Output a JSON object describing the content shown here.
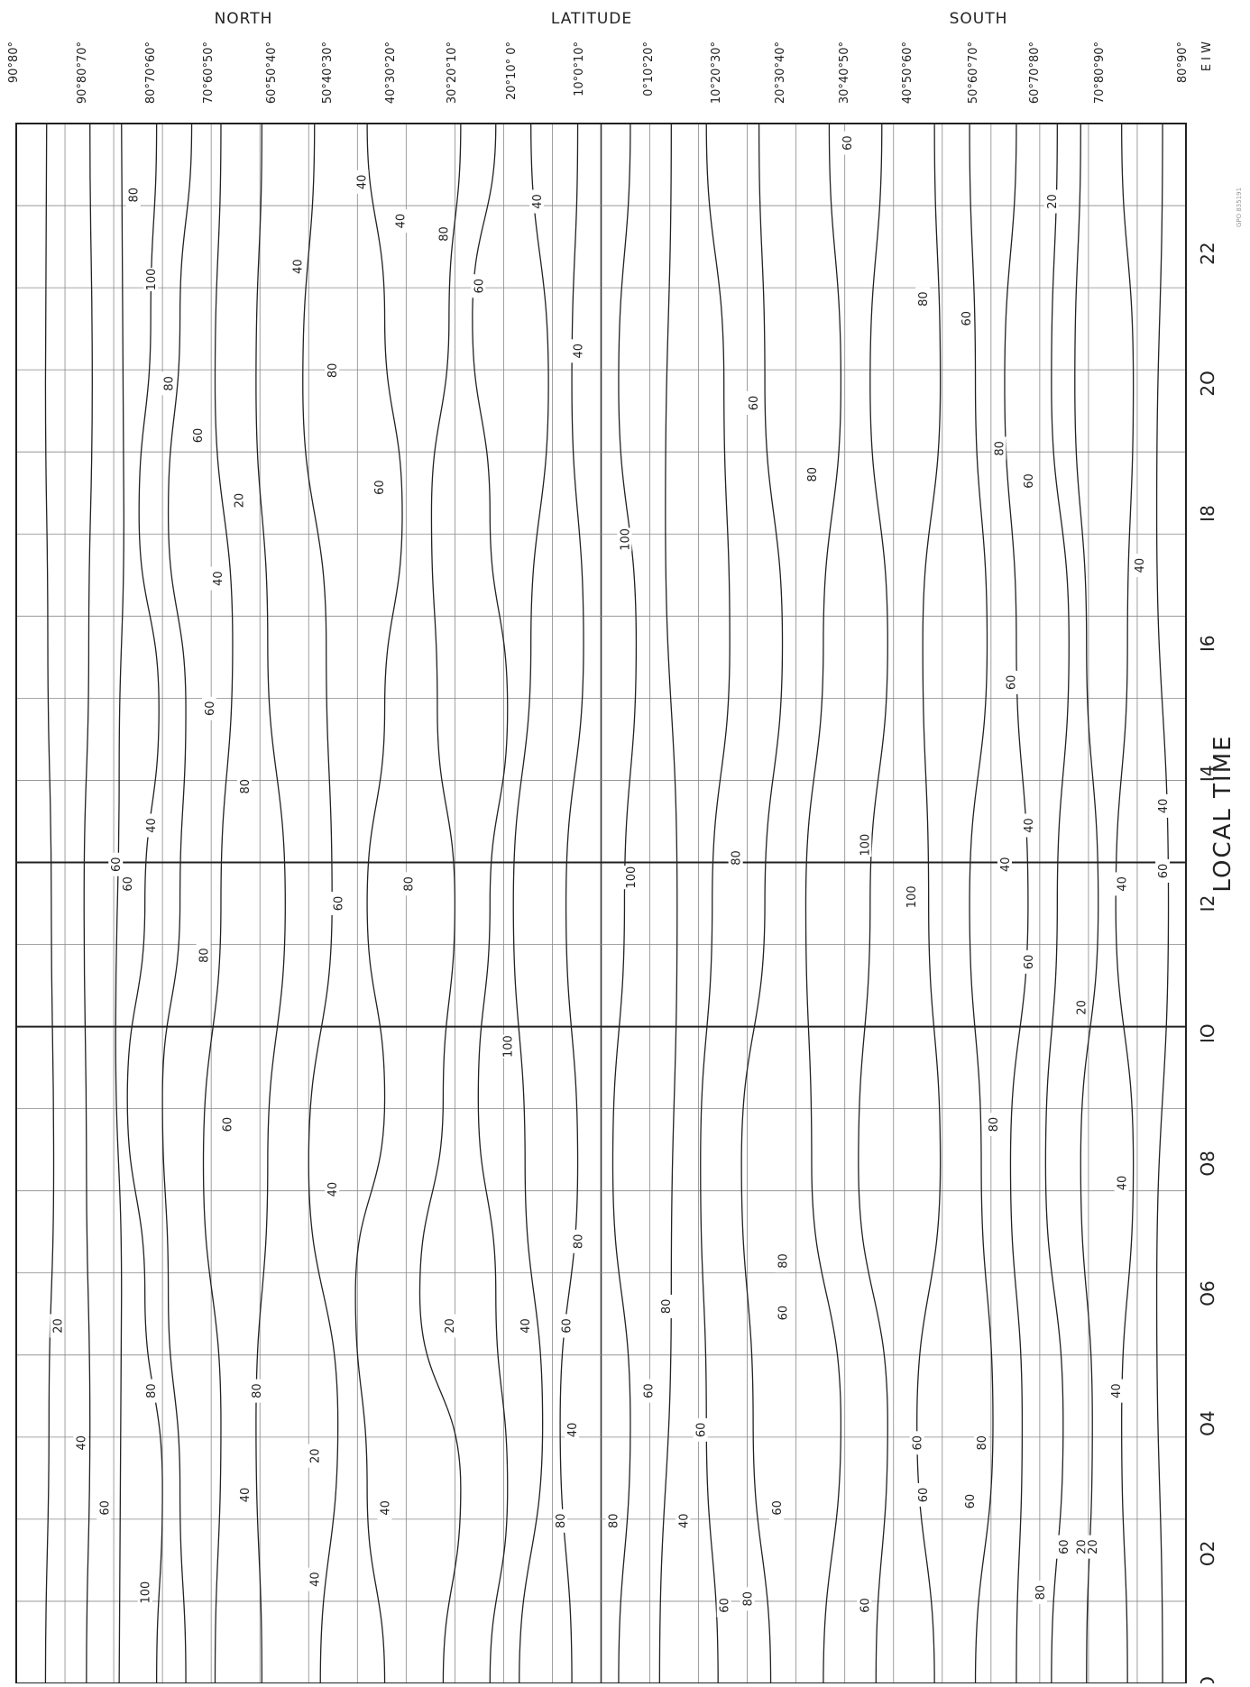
{
  "chart_data": {
    "type": "heatmap",
    "header": {
      "north": "NORTH",
      "latitude": "LATITUDE",
      "south": "SOUTH"
    },
    "x_axis": {
      "label": "LOCAL TIME",
      "range": [
        0,
        24
      ],
      "ticks": [
        "O",
        "O2",
        "O4",
        "O6",
        "O8",
        "IO",
        "I2",
        "I4",
        "I6",
        "I8",
        "2O",
        "22"
      ]
    },
    "y_axis": {
      "orientation": "latitude bands (north at top, south at bottom)",
      "columns": [
        "90°80°",
        "90°80°70°",
        "80°70°60°",
        "70°60°50°",
        "60°50°40°",
        "50°40°30°",
        "40°30°20°",
        "30°20°10°",
        "20°10° 0°",
        "10°0°10°",
        "0°10°20°",
        "10°20°30°",
        "20°30°40°",
        "30°40°50°",
        "40°50°60°",
        "50°60°70°",
        "60°70°80°",
        "70°80°90°",
        "80°90°"
      ],
      "ew_marker": "E I W"
    },
    "grid": true,
    "stamp": "GPO 835191",
    "contour_levels": [
      20,
      40,
      60,
      80,
      100
    ],
    "contour_labels": [
      {
        "text": "80",
        "t": 22.9,
        "lat": 10.0
      },
      {
        "text": "100",
        "t": 21.6,
        "lat": 11.5
      },
      {
        "text": "80",
        "t": 20.0,
        "lat": 13.0
      },
      {
        "text": "60",
        "t": 19.2,
        "lat": 15.5
      },
      {
        "text": "40",
        "t": 17.0,
        "lat": 17.2
      },
      {
        "text": "20",
        "t": 18.2,
        "lat": 19.0
      },
      {
        "text": "40",
        "t": 21.8,
        "lat": 24.0
      },
      {
        "text": "80",
        "t": 20.2,
        "lat": 27.0
      },
      {
        "text": "40",
        "t": 23.1,
        "lat": 29.5
      },
      {
        "text": "60",
        "t": 18.4,
        "lat": 31.0
      },
      {
        "text": "40",
        "t": 22.5,
        "lat": 32.8
      },
      {
        "text": "80",
        "t": 22.3,
        "lat": 36.5
      },
      {
        "text": "60",
        "t": 21.5,
        "lat": 39.5
      },
      {
        "text": "40",
        "t": 22.8,
        "lat": 44.5
      },
      {
        "text": "40",
        "t": 20.5,
        "lat": 48.0
      },
      {
        "text": "60",
        "t": 19.7,
        "lat": 63.0
      },
      {
        "text": "80",
        "t": 18.6,
        "lat": 68.0
      },
      {
        "text": "60",
        "t": 23.7,
        "lat": 71.0
      },
      {
        "text": "80",
        "t": 21.3,
        "lat": 77.5
      },
      {
        "text": "60",
        "t": 21.0,
        "lat": 81.2
      },
      {
        "text": "80",
        "t": 19.0,
        "lat": 84.0
      },
      {
        "text": "60",
        "t": 18.5,
        "lat": 86.5
      },
      {
        "text": "20",
        "t": 22.8,
        "lat": 88.5
      },
      {
        "text": "40",
        "t": 17.2,
        "lat": 96.0
      },
      {
        "text": "100",
        "t": 17.6,
        "lat": 52.0
      },
      {
        "text": "100",
        "t": 12.4,
        "lat": 52.5
      },
      {
        "text": "100",
        "t": 12.1,
        "lat": 76.5
      },
      {
        "text": "80",
        "t": 12.7,
        "lat": 61.5
      },
      {
        "text": "80",
        "t": 12.3,
        "lat": 33.5
      },
      {
        "text": "60",
        "t": 12.0,
        "lat": 27.5
      },
      {
        "text": "100",
        "t": 12.9,
        "lat": 72.5
      },
      {
        "text": "60",
        "t": 12.3,
        "lat": 9.5
      },
      {
        "text": "40",
        "t": 13.2,
        "lat": 11.5
      },
      {
        "text": "80",
        "t": 11.2,
        "lat": 16.0
      },
      {
        "text": "60",
        "t": 15.0,
        "lat": 16.5
      },
      {
        "text": "80",
        "t": 13.8,
        "lat": 19.5
      },
      {
        "text": "60",
        "t": 15.4,
        "lat": 85.0
      },
      {
        "text": "40",
        "t": 13.2,
        "lat": 86.5
      },
      {
        "text": "40",
        "t": 12.6,
        "lat": 84.5
      },
      {
        "text": "60",
        "t": 11.1,
        "lat": 86.5
      },
      {
        "text": "20",
        "t": 10.4,
        "lat": 91.0
      },
      {
        "text": "40",
        "t": 12.3,
        "lat": 94.5
      },
      {
        "text": "40",
        "t": 13.5,
        "lat": 98.0
      },
      {
        "text": "60",
        "t": 12.5,
        "lat": 98.0
      },
      {
        "text": "100",
        "t": 9.8,
        "lat": 42.0
      },
      {
        "text": "80",
        "t": 8.6,
        "lat": 83.5
      },
      {
        "text": "40",
        "t": 7.7,
        "lat": 94.5
      },
      {
        "text": "60",
        "t": 8.6,
        "lat": 18.0
      },
      {
        "text": "40",
        "t": 7.6,
        "lat": 27.0
      },
      {
        "text": "80",
        "t": 6.8,
        "lat": 48.0
      },
      {
        "text": "80",
        "t": 6.5,
        "lat": 65.5
      },
      {
        "text": "60",
        "t": 5.7,
        "lat": 65.5
      },
      {
        "text": "20",
        "t": 5.5,
        "lat": 3.5
      },
      {
        "text": "80",
        "t": 4.5,
        "lat": 11.5
      },
      {
        "text": "80",
        "t": 4.5,
        "lat": 20.5
      },
      {
        "text": "20",
        "t": 5.5,
        "lat": 37.0
      },
      {
        "text": "40",
        "t": 5.5,
        "lat": 43.5
      },
      {
        "text": "60",
        "t": 5.5,
        "lat": 47.0
      },
      {
        "text": "80",
        "t": 5.8,
        "lat": 55.5
      },
      {
        "text": "60",
        "t": 4.5,
        "lat": 54.0
      },
      {
        "text": "60",
        "t": 3.9,
        "lat": 58.5
      },
      {
        "text": "40",
        "t": 3.9,
        "lat": 47.5
      },
      {
        "text": "40",
        "t": 4.5,
        "lat": 94.0
      },
      {
        "text": "80",
        "t": 3.7,
        "lat": 82.5
      },
      {
        "text": "60",
        "t": 3.7,
        "lat": 77.0
      },
      {
        "text": "40",
        "t": 3.7,
        "lat": 5.5
      },
      {
        "text": "60",
        "t": 2.7,
        "lat": 7.5
      },
      {
        "text": "100",
        "t": 1.4,
        "lat": 11.0
      },
      {
        "text": "20",
        "t": 3.5,
        "lat": 25.5
      },
      {
        "text": "40",
        "t": 2.9,
        "lat": 19.5
      },
      {
        "text": "40",
        "t": 1.6,
        "lat": 25.5
      },
      {
        "text": "40",
        "t": 2.7,
        "lat": 31.5
      },
      {
        "text": "80",
        "t": 2.5,
        "lat": 46.5
      },
      {
        "text": "80",
        "t": 2.5,
        "lat": 51.0
      },
      {
        "text": "40",
        "t": 2.5,
        "lat": 57.0
      },
      {
        "text": "60",
        "t": 2.7,
        "lat": 65.0
      },
      {
        "text": "60",
        "t": 1.2,
        "lat": 60.5
      },
      {
        "text": "80",
        "t": 1.3,
        "lat": 62.5
      },
      {
        "text": "60",
        "t": 2.9,
        "lat": 77.5
      },
      {
        "text": "60",
        "t": 1.2,
        "lat": 72.5
      },
      {
        "text": "60",
        "t": 2.8,
        "lat": 81.5
      },
      {
        "text": "80",
        "t": 1.4,
        "lat": 87.5
      },
      {
        "text": "60",
        "t": 2.1,
        "lat": 89.5
      },
      {
        "text": "20",
        "t": 2.1,
        "lat": 91.0
      },
      {
        "text": "20",
        "t": 2.1,
        "lat": 92.0
      },
      {
        "text": "60",
        "t": 12.6,
        "lat": 8.5
      }
    ],
    "contours": [
      {
        "t": [
          0,
          4,
          8,
          12,
          16,
          20,
          24
        ],
        "lat": [
          2.5,
          2.8,
          3.2,
          3.0,
          2.7,
          2.5,
          2.6
        ]
      },
      {
        "t": [
          0,
          4,
          8,
          12,
          16,
          20,
          24
        ],
        "lat": [
          6.0,
          6.3,
          6.0,
          5.8,
          6.2,
          6.5,
          6.3
        ]
      },
      {
        "t": [
          0,
          6,
          10,
          14,
          18,
          24
        ],
        "lat": [
          8.8,
          9.0,
          8.5,
          8.8,
          9.2,
          9.0
        ]
      },
      {
        "t": [
          0,
          3,
          6,
          9,
          12,
          15,
          18,
          21,
          24
        ],
        "lat": [
          12.0,
          12.5,
          11.0,
          9.5,
          11.0,
          12.2,
          10.5,
          11.5,
          12.0
        ]
      },
      {
        "t": [
          0,
          3,
          6,
          9,
          12,
          15,
          18,
          21,
          24
        ],
        "lat": [
          14.5,
          14.0,
          13.0,
          12.5,
          14.0,
          14.5,
          13.0,
          14.0,
          15.0
        ]
      },
      {
        "t": [
          0,
          4,
          8,
          12,
          16,
          20,
          24
        ],
        "lat": [
          17.0,
          17.5,
          16.0,
          17.5,
          18.5,
          17.0,
          17.5
        ]
      },
      {
        "t": [
          0,
          4,
          8,
          12,
          16,
          20,
          24
        ],
        "lat": [
          21.0,
          20.5,
          21.5,
          23.0,
          21.5,
          20.5,
          21.0
        ]
      },
      {
        "t": [
          0,
          4,
          8,
          12,
          16,
          20,
          24
        ],
        "lat": [
          26.0,
          27.5,
          25.0,
          27.0,
          26.5,
          24.5,
          25.5
        ]
      },
      {
        "t": [
          0,
          3,
          6,
          9,
          12,
          15,
          18,
          21,
          24
        ],
        "lat": [
          31.5,
          30.0,
          29.0,
          31.5,
          30.0,
          31.5,
          33.0,
          31.5,
          30.0
        ]
      },
      {
        "t": [
          0,
          3,
          6,
          9,
          12,
          15,
          18,
          21,
          24
        ],
        "lat": [
          36.5,
          38.0,
          34.5,
          36.5,
          37.5,
          36.0,
          35.5,
          37.0,
          38.0
        ]
      },
      {
        "t": [
          0,
          3,
          6,
          9,
          12,
          15,
          18,
          21,
          24
        ],
        "lat": [
          40.5,
          42.0,
          41.0,
          39.5,
          40.5,
          42.0,
          40.5,
          39.0,
          41.0
        ]
      },
      {
        "t": [
          0,
          4,
          8,
          12,
          16,
          20,
          24
        ],
        "lat": [
          43.0,
          45.0,
          43.5,
          42.5,
          44.0,
          45.5,
          44.0
        ]
      },
      {
        "t": [
          0,
          4,
          8,
          12,
          16,
          20,
          24
        ],
        "lat": [
          47.5,
          46.5,
          48.0,
          47.0,
          48.5,
          47.5,
          48.0
        ]
      },
      {
        "t": [
          0,
          4,
          8,
          12,
          16,
          20,
          24
        ],
        "lat": [
          51.5,
          52.5,
          51.0,
          52.0,
          53.0,
          51.5,
          52.5
        ]
      },
      {
        "t": [
          0,
          6,
          12,
          18,
          24
        ],
        "lat": [
          55.0,
          56.0,
          56.5,
          55.5,
          56.0
        ]
      },
      {
        "t": [
          0,
          4,
          8,
          12,
          16,
          20,
          24
        ],
        "lat": [
          60.0,
          59.0,
          58.5,
          59.5,
          61.0,
          60.5,
          59.0
        ]
      },
      {
        "t": [
          0,
          4,
          8,
          12,
          16,
          20,
          24
        ],
        "lat": [
          64.5,
          63.0,
          62.0,
          64.0,
          65.5,
          64.0,
          63.5
        ]
      },
      {
        "t": [
          0,
          4,
          8,
          12,
          16,
          20,
          24
        ],
        "lat": [
          69.0,
          70.5,
          68.0,
          67.5,
          69.0,
          70.5,
          69.5
        ]
      },
      {
        "t": [
          0,
          4,
          8,
          12,
          16,
          20,
          24
        ],
        "lat": [
          73.5,
          74.5,
          72.0,
          73.0,
          74.5,
          73.0,
          74.0
        ]
      },
      {
        "t": [
          0,
          4,
          8,
          12,
          16,
          20,
          24
        ],
        "lat": [
          78.5,
          77.0,
          79.0,
          78.0,
          77.5,
          79.0,
          78.5
        ]
      },
      {
        "t": [
          0,
          4,
          8,
          12,
          16,
          20,
          24
        ],
        "lat": [
          82.0,
          83.5,
          82.5,
          81.5,
          83.0,
          82.0,
          81.5
        ]
      },
      {
        "t": [
          0,
          4,
          8,
          12,
          16,
          20,
          24
        ],
        "lat": [
          85.5,
          86.0,
          85.0,
          86.5,
          85.5,
          84.5,
          85.5
        ]
      },
      {
        "t": [
          0,
          4,
          8,
          12,
          16,
          20,
          24
        ],
        "lat": [
          88.5,
          89.5,
          88.0,
          89.0,
          90.0,
          88.5,
          89.0
        ]
      },
      {
        "t": [
          0,
          4,
          8,
          12,
          16,
          20,
          24
        ],
        "lat": [
          91.5,
          92.0,
          91.0,
          92.5,
          91.5,
          90.5,
          91.0
        ]
      },
      {
        "t": [
          0,
          4,
          8,
          12,
          16,
          20,
          24
        ],
        "lat": [
          95.0,
          94.5,
          95.5,
          94.0,
          95.0,
          95.5,
          94.5
        ]
      },
      {
        "t": [
          0,
          6,
          12,
          18,
          24
        ],
        "lat": [
          98.0,
          97.5,
          98.5,
          97.5,
          98.0
        ]
      }
    ]
  }
}
